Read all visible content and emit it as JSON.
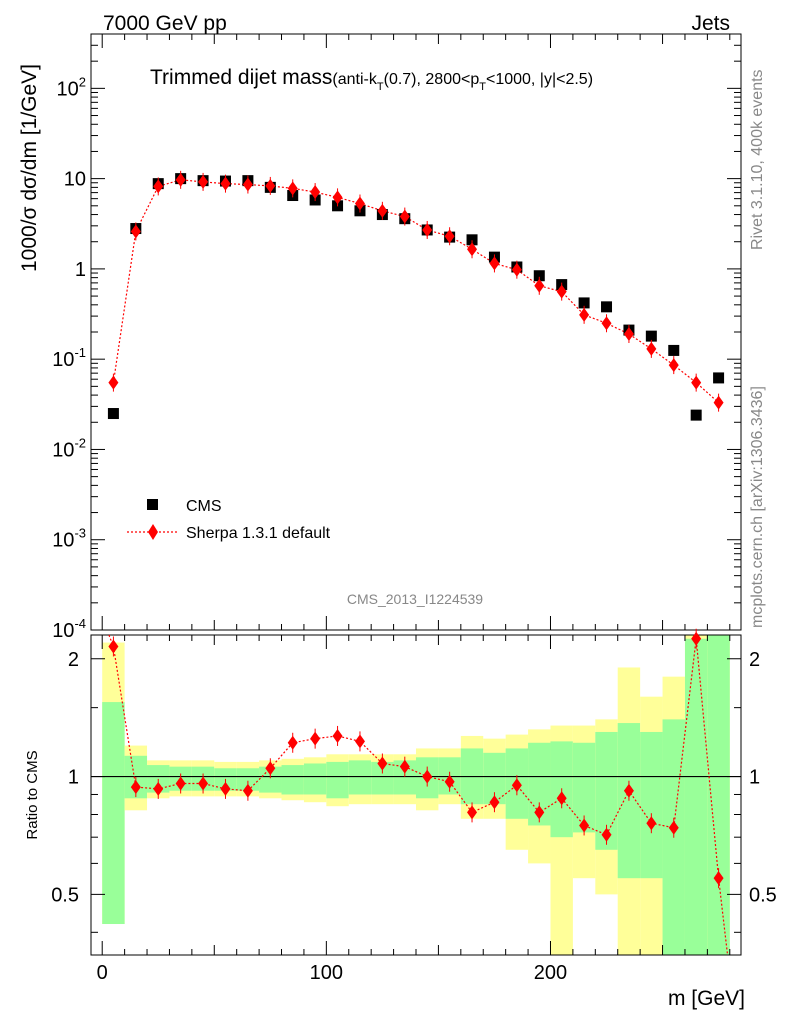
{
  "header": {
    "left": "7000 GeV pp",
    "right": "Jets"
  },
  "title": {
    "main": "Trimmed dijet mass",
    "sub_prefix": "(anti-k",
    "sub_t1": "T",
    "sub_mid": "(0.7), 2800<p",
    "sub_t2": "T",
    "sub_end": "<1000, |y|<2.5)"
  },
  "side_text": {
    "rivet": "Rivet 3.1.10,  400k events",
    "mcplots": "mcplots.cern.ch [arXiv:1306.3436]"
  },
  "analysis_id": "CMS_2013_I1224539",
  "legend": {
    "data_label": "CMS",
    "mc_label": "Sherpa 1.3.1 default"
  },
  "colors": {
    "data": "#000000",
    "mc": "#ff0000",
    "band_inner": "#99ff99",
    "band_outer": "#ffff99"
  },
  "chart_data": [
    {
      "type": "scatter",
      "ylabel": "1000/σ dσ/dm [1/GeV]",
      "yscale": "log",
      "ylim": [
        0.0001,
        400
      ],
      "xlim": [
        -5,
        285
      ],
      "y_tick_labels": [
        "10^-4",
        "10^-3",
        "10^-2",
        "10^-1",
        "1",
        "10",
        "10^2"
      ],
      "x_bins": [
        [
          0,
          10
        ],
        [
          10,
          20
        ],
        [
          20,
          30
        ],
        [
          30,
          40
        ],
        [
          40,
          50
        ],
        [
          50,
          60
        ],
        [
          60,
          70
        ],
        [
          70,
          80
        ],
        [
          80,
          90
        ],
        [
          90,
          100
        ],
        [
          100,
          110
        ],
        [
          110,
          120
        ],
        [
          120,
          130
        ],
        [
          130,
          140
        ],
        [
          140,
          150
        ],
        [
          150,
          160
        ],
        [
          160,
          170
        ],
        [
          170,
          180
        ],
        [
          180,
          190
        ],
        [
          190,
          200
        ],
        [
          200,
          210
        ],
        [
          210,
          220
        ],
        [
          220,
          230
        ],
        [
          230,
          240
        ],
        [
          240,
          250
        ],
        [
          250,
          260
        ],
        [
          260,
          270
        ],
        [
          270,
          280
        ]
      ],
      "series": [
        {
          "name": "CMS",
          "x": [
            5,
            15,
            25,
            35,
            45,
            55,
            65,
            75,
            85,
            95,
            105,
            115,
            125,
            135,
            145,
            155,
            165,
            175,
            185,
            195,
            205,
            215,
            225,
            235,
            245,
            255,
            265,
            275
          ],
          "y": [
            0.025,
            2.8,
            8.8,
            10.0,
            9.5,
            9.4,
            9.5,
            8.0,
            6.5,
            5.8,
            5.0,
            4.4,
            4.0,
            3.6,
            2.7,
            2.25,
            2.1,
            1.35,
            1.05,
            0.84,
            0.67,
            0.42,
            0.38,
            0.21,
            0.18,
            0.125,
            0.024,
            0.062
          ]
        },
        {
          "name": "Sherpa 1.3.1 default",
          "x": [
            5,
            15,
            25,
            35,
            45,
            55,
            65,
            75,
            85,
            95,
            105,
            115,
            125,
            135,
            145,
            155,
            165,
            175,
            185,
            195,
            205,
            215,
            225,
            235,
            245,
            255,
            265,
            275
          ],
          "y": [
            0.055,
            2.6,
            8.2,
            9.7,
            9.2,
            8.8,
            8.6,
            8.3,
            7.8,
            7.1,
            6.2,
            5.3,
            4.4,
            3.8,
            2.7,
            2.3,
            1.65,
            1.15,
            0.98,
            0.65,
            0.56,
            0.31,
            0.25,
            0.19,
            0.13,
            0.086,
            0.055,
            0.033
          ]
        }
      ]
    },
    {
      "type": "scatter",
      "xlabel": "m [GeV]",
      "ylabel": "Ratio to CMS",
      "ylim": [
        0.35,
        2.3
      ],
      "xlim": [
        -5,
        285
      ],
      "x_tick_labels": [
        "0",
        "100",
        "200"
      ],
      "y_tick_labels": [
        "0.5",
        "1",
        "2"
      ],
      "series": [
        {
          "name": "Sherpa 1.3.1 default",
          "x": [
            5,
            15,
            25,
            35,
            45,
            55,
            65,
            75,
            85,
            95,
            105,
            115,
            125,
            135,
            145,
            155,
            165,
            175,
            185,
            195,
            205,
            215,
            225,
            235,
            245,
            255,
            265,
            275
          ],
          "y": [
            2.15,
            0.94,
            0.93,
            0.96,
            0.96,
            0.93,
            0.92,
            1.05,
            1.22,
            1.25,
            1.27,
            1.23,
            1.08,
            1.06,
            1.0,
            0.97,
            0.81,
            0.86,
            0.95,
            0.81,
            0.88,
            0.75,
            0.71,
            0.92,
            0.76,
            0.74,
            2.25,
            0.55
          ]
        }
      ],
      "band_inner": [
        [
          0.42,
          1.55
        ],
        [
          0.88,
          1.13
        ],
        [
          0.91,
          1.07
        ],
        [
          0.92,
          1.06
        ],
        [
          0.92,
          1.06
        ],
        [
          0.92,
          1.05
        ],
        [
          0.92,
          1.05
        ],
        [
          0.91,
          1.06
        ],
        [
          0.9,
          1.07
        ],
        [
          0.9,
          1.08
        ],
        [
          0.88,
          1.09
        ],
        [
          0.9,
          1.1
        ],
        [
          0.9,
          1.09
        ],
        [
          0.9,
          1.1
        ],
        [
          0.88,
          1.12
        ],
        [
          0.9,
          1.12
        ],
        [
          0.85,
          1.18
        ],
        [
          0.85,
          1.15
        ],
        [
          0.78,
          1.18
        ],
        [
          0.75,
          1.22
        ],
        [
          0.7,
          1.23
        ],
        [
          0.72,
          1.22
        ],
        [
          0.65,
          1.3
        ],
        [
          0.55,
          1.37
        ],
        [
          0.55,
          1.3
        ],
        [
          0.35,
          1.4
        ],
        [
          0.35,
          2.25
        ],
        [
          0.35,
          2.3
        ]
      ],
      "band_outer": [
        [
          0.42,
          2.2
        ],
        [
          0.82,
          1.2
        ],
        [
          0.88,
          1.1
        ],
        [
          0.89,
          1.1
        ],
        [
          0.89,
          1.1
        ],
        [
          0.89,
          1.09
        ],
        [
          0.89,
          1.09
        ],
        [
          0.88,
          1.1
        ],
        [
          0.87,
          1.11
        ],
        [
          0.86,
          1.12
        ],
        [
          0.84,
          1.14
        ],
        [
          0.85,
          1.14
        ],
        [
          0.85,
          1.14
        ],
        [
          0.85,
          1.14
        ],
        [
          0.82,
          1.18
        ],
        [
          0.85,
          1.18
        ],
        [
          0.78,
          1.27
        ],
        [
          0.78,
          1.25
        ],
        [
          0.65,
          1.28
        ],
        [
          0.6,
          1.32
        ],
        [
          0.35,
          1.35
        ],
        [
          0.55,
          1.35
        ],
        [
          0.5,
          1.4
        ],
        [
          0.35,
          1.9
        ],
        [
          0.35,
          1.6
        ],
        [
          0.35,
          1.8
        ],
        [
          0.35,
          2.3
        ],
        [
          0.35,
          2.3
        ]
      ]
    }
  ]
}
